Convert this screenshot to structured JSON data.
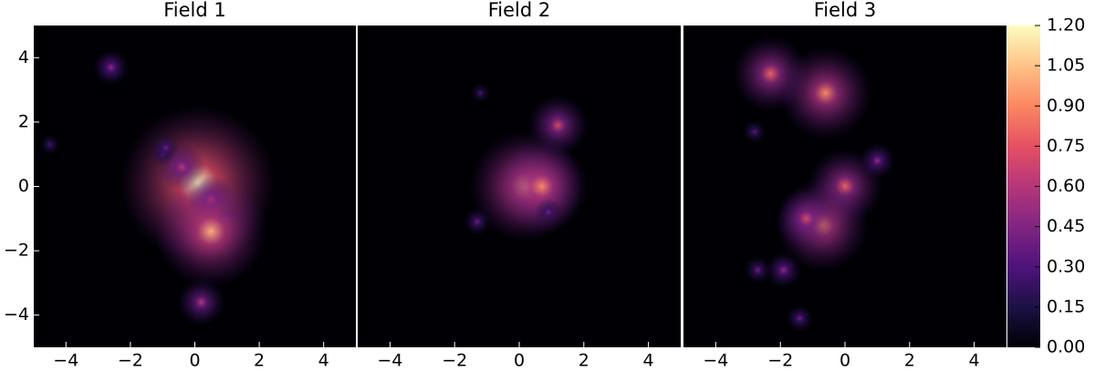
{
  "chart_data": [
    {
      "type": "heatmap",
      "title": "Field 1",
      "xlim": [
        -5,
        5
      ],
      "ylim": [
        -5,
        5
      ],
      "xticks": [
        {
          "value": -4,
          "label": "−4"
        },
        {
          "value": -2,
          "label": "−2"
        },
        0,
        2,
        4
      ],
      "yticks": [
        {
          "value": -4,
          "label": "−4"
        },
        {
          "value": -2,
          "label": "−2"
        },
        0,
        2,
        4
      ],
      "sources": {
        "x": [
          0.1,
          -0.4,
          0.5,
          -1.0,
          1.0,
          0.5,
          -2.6,
          -4.5,
          0.2,
          -0.9
        ],
        "y": [
          0.1,
          0.6,
          -0.4,
          1.0,
          -1.0,
          -1.4,
          3.7,
          1.3,
          -3.6,
          1.2
        ],
        "values": [
          1.2,
          0.6,
          0.6,
          0.35,
          0.35,
          1.0,
          0.5,
          0.3,
          0.6,
          0.4
        ]
      }
    },
    {
      "type": "heatmap",
      "title": "Field 2",
      "xlim": [
        -5,
        5
      ],
      "ylim": [
        -5,
        5
      ],
      "xticks": [
        {
          "value": -4,
          "label": "−4"
        },
        {
          "value": -2,
          "label": "−2"
        },
        0,
        2,
        4
      ],
      "sources": {
        "x": [
          0.2,
          0.7,
          1.2,
          -1.3,
          -1.2,
          0.9
        ],
        "y": [
          0.0,
          0.0,
          1.9,
          -1.1,
          2.9,
          -0.8
        ],
        "values": [
          1.0,
          0.9,
          0.7,
          0.4,
          0.3,
          0.4
        ]
      }
    },
    {
      "type": "heatmap",
      "title": "Field 3",
      "xlim": [
        -5,
        5
      ],
      "ylim": [
        -5,
        5
      ],
      "xticks": [
        {
          "value": -4,
          "label": "−4"
        },
        {
          "value": -2,
          "label": "−2"
        },
        0,
        2,
        4
      ],
      "sources": {
        "x": [
          -2.3,
          -0.6,
          0.0,
          -0.7,
          -1.2,
          1.0,
          -1.9,
          -2.7,
          -1.4,
          -2.8
        ],
        "y": [
          3.5,
          2.9,
          0.0,
          -1.2,
          -1.0,
          0.8,
          -2.6,
          -2.6,
          -4.1,
          1.7
        ],
        "values": [
          0.8,
          0.9,
          0.8,
          0.9,
          0.7,
          0.5,
          0.5,
          0.4,
          0.4,
          0.35
        ]
      }
    }
  ],
  "colorbar": {
    "colormap": "magma",
    "clim": [
      0,
      1.2
    ],
    "ticks": [
      {
        "value": 0,
        "label": "0.00"
      },
      0.15,
      {
        "value": 0.3,
        "label": "0.30"
      },
      0.45,
      {
        "value": 0.6,
        "label": "0.60"
      },
      0.75,
      {
        "value": 0.9,
        "label": "0.90"
      },
      1.05,
      {
        "value": 1.2,
        "label": "1.20"
      }
    ]
  }
}
